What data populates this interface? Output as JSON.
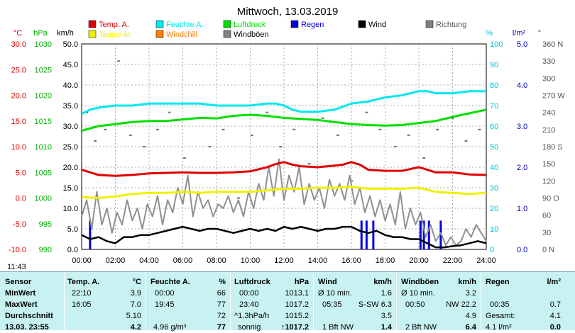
{
  "chart_data": {
    "type": "line",
    "title": "Mittwoch, 13.03.2019",
    "legend": [
      {
        "name": "Temp. A.",
        "color": "#e00000"
      },
      {
        "name": "Feuchte A.",
        "color": "#00e8f0"
      },
      {
        "name": "Luftdruck",
        "color": "#00e000"
      },
      {
        "name": "Regen",
        "color": "#0000e0"
      },
      {
        "name": "Wind",
        "color": "#000000"
      },
      {
        "name": "Richtung",
        "color": "#808080"
      },
      {
        "name": "Taupunkt",
        "color": "#f0f000"
      },
      {
        "name": "Windchill",
        "color": "#ff8000"
      },
      {
        "name": "Windböen",
        "color": "#808080"
      }
    ],
    "axes": {
      "temp": {
        "label": "°C",
        "ticks": [
          "30.0",
          "25.0",
          "20.0",
          "15.0",
          "10.0",
          "5.0",
          "0.0",
          "-5.0",
          "-10.0"
        ]
      },
      "pressure": {
        "label": "hPa",
        "ticks": [
          "1030",
          "1025",
          "1020",
          "1015",
          "1010",
          "1005",
          "1000",
          "995",
          "990"
        ]
      },
      "wind": {
        "label": "km/h",
        "ticks": [
          "50.0",
          "45.0",
          "40.0",
          "35.0",
          "30.0",
          "25.0",
          "20.0",
          "15.0",
          "10.0",
          "5.0",
          "0.0"
        ]
      },
      "humidity": {
        "label": "%",
        "ticks": [
          "100",
          "90",
          "80",
          "70",
          "60",
          "50",
          "40",
          "30",
          "20",
          "10",
          "0"
        ]
      },
      "rain": {
        "label": "l/m²",
        "ticks": [
          "5.0",
          "4.0",
          "3.0",
          "2.0",
          "1.0",
          "0.0"
        ]
      },
      "direction": {
        "label": "°",
        "ticks": [
          "360 N",
          "330",
          "300",
          "270 W",
          "240",
          "210",
          "180 S",
          "150",
          "120",
          "90 O",
          "60",
          "30",
          "0 N"
        ]
      },
      "x_ticks": [
        "00:00",
        "02:00",
        "04:00",
        "06:00",
        "08:00",
        "10:00",
        "12:00",
        "14:00",
        "16:00",
        "18:00",
        "20:00",
        "22:00",
        "24:00"
      ]
    },
    "ranges": {
      "x": [
        0,
        24
      ],
      "wind": [
        0,
        50
      ],
      "humidity": [
        0,
        100
      ],
      "rain": [
        0,
        5
      ],
      "temp": [
        -10,
        30
      ],
      "pressure": [
        990,
        1030
      ],
      "direction": [
        0,
        360
      ]
    },
    "series": {
      "temp": {
        "x": [
          0,
          1,
          2,
          3,
          4,
          5,
          6,
          7,
          8,
          9,
          10,
          11,
          11.5,
          12,
          12.5,
          13,
          14,
          15,
          15.5,
          16,
          16.5,
          17,
          18,
          19,
          20,
          20.5,
          21,
          22,
          23,
          24
        ],
        "y": [
          5.5,
          4.5,
          4.3,
          4.5,
          4.8,
          4.9,
          5.0,
          4.9,
          4.9,
          5.0,
          5.2,
          6.0,
          6.6,
          7.0,
          6.5,
          6.2,
          6.0,
          6.3,
          6.5,
          7.0,
          6.5,
          5.5,
          5.3,
          5.3,
          6.0,
          5.5,
          5.0,
          5.0,
          4.6,
          4.5
        ]
      },
      "dewpoint": {
        "x": [
          0,
          1,
          2,
          3,
          4,
          5,
          6,
          7,
          8,
          9,
          10,
          11,
          12,
          13,
          14,
          15,
          16,
          17,
          18,
          19,
          20,
          21,
          22,
          23,
          24
        ],
        "y": [
          0.2,
          0.0,
          0.3,
          0.8,
          1.0,
          1.0,
          1.2,
          1.0,
          1.2,
          1.2,
          1.2,
          1.5,
          1.8,
          1.8,
          2.0,
          2.0,
          2.2,
          1.8,
          1.8,
          1.8,
          2.0,
          1.2,
          1.0,
          0.8,
          1.0
        ]
      },
      "humidity": {
        "x": [
          0,
          0.5,
          1,
          2,
          3,
          4,
          5,
          6,
          7,
          8,
          9,
          10,
          11,
          11.5,
          12,
          12.5,
          13,
          14,
          15,
          16,
          17,
          17.5,
          18,
          19,
          20,
          20.5,
          21,
          22,
          23,
          24
        ],
        "y": [
          66,
          68,
          69,
          70,
          70,
          71,
          71,
          71,
          71,
          70,
          70,
          70,
          71,
          71,
          70,
          68,
          67,
          67,
          68,
          71,
          72,
          73,
          74,
          75,
          77,
          77,
          76,
          76,
          77,
          77
        ]
      },
      "pressure": {
        "x": [
          0,
          1,
          2,
          3,
          4,
          5,
          6,
          7,
          8,
          9,
          10,
          11,
          12,
          13,
          14,
          15,
          16,
          17,
          18,
          19,
          20,
          21,
          22,
          23,
          24
        ],
        "y": [
          1013.1,
          1014.0,
          1014.4,
          1014.8,
          1015.0,
          1015.0,
          1015.3,
          1015.6,
          1015.5,
          1016.0,
          1016.2,
          1016.0,
          1015.6,
          1015.4,
          1015.2,
          1014.8,
          1014.4,
          1014.2,
          1014.1,
          1014.2,
          1014.6,
          1015.0,
          1015.8,
          1016.5,
          1017.2
        ]
      },
      "wind": {
        "x": [
          0,
          0.5,
          1,
          1.5,
          2,
          2.5,
          3,
          3.5,
          4,
          4.5,
          5,
          5.5,
          6,
          6.5,
          7,
          7.5,
          8,
          8.5,
          9,
          9.5,
          10,
          10.5,
          11,
          11.5,
          12,
          12.5,
          13,
          13.5,
          14,
          14.5,
          15,
          15.5,
          16,
          16.5,
          17,
          17.5,
          18,
          18.5,
          19,
          19.5,
          20,
          20.5,
          21,
          21.5,
          22,
          22.5,
          23,
          23.5,
          24
        ],
        "y": [
          3.5,
          2.5,
          3.0,
          2.0,
          1.5,
          3.0,
          3.0,
          3.5,
          3.5,
          4.0,
          4.5,
          5.0,
          5.5,
          5.0,
          4.5,
          5.0,
          5.0,
          4.5,
          4.0,
          4.5,
          5.0,
          4.5,
          5.0,
          4.5,
          5.5,
          5.0,
          5.5,
          5.0,
          4.5,
          5.0,
          5.0,
          5.5,
          5.5,
          4.5,
          4.0,
          4.5,
          3.5,
          3.0,
          3.0,
          2.5,
          2.5,
          1.5,
          0.5,
          0.5,
          0.8,
          1.0,
          1.5,
          2.0,
          1.5
        ]
      },
      "gusts": {
        "x": [
          0,
          0.3,
          0.6,
          0.9,
          1.2,
          1.5,
          1.8,
          2.1,
          2.4,
          2.7,
          3,
          3.3,
          3.6,
          3.9,
          4.2,
          4.5,
          4.8,
          5.1,
          5.4,
          5.7,
          6,
          6.3,
          6.6,
          6.9,
          7.2,
          7.5,
          7.8,
          8.1,
          8.4,
          8.7,
          9,
          9.3,
          9.6,
          9.9,
          10.2,
          10.5,
          10.8,
          11.1,
          11.4,
          11.7,
          12,
          12.3,
          12.6,
          12.9,
          13.2,
          13.5,
          13.8,
          14.1,
          14.4,
          14.7,
          15,
          15.3,
          15.6,
          15.9,
          16.2,
          16.5,
          16.8,
          17.1,
          17.4,
          17.7,
          18,
          18.3,
          18.6,
          18.9,
          19.2,
          19.5,
          19.8,
          20.1,
          20.4,
          20.7,
          21,
          21.3,
          21.6,
          21.9,
          22.2,
          22.5,
          22.8,
          23.1,
          23.4,
          23.7,
          24
        ],
        "y": [
          8,
          12,
          5,
          14,
          6,
          10,
          4,
          9,
          6,
          12,
          7,
          10,
          5,
          11,
          8,
          13,
          6,
          12,
          9,
          15,
          11,
          18,
          8,
          14,
          10,
          12,
          8,
          11,
          10,
          13,
          9,
          12,
          8,
          14,
          10,
          16,
          12,
          20,
          13,
          22,
          12,
          18,
          14,
          20,
          11,
          16,
          12,
          15,
          10,
          17,
          13,
          16,
          12,
          18,
          11,
          15,
          9,
          13,
          8,
          12,
          7,
          11,
          6,
          14,
          5,
          10,
          6,
          9,
          3,
          6,
          2,
          4,
          1,
          3,
          1,
          2,
          5,
          3,
          6,
          4,
          2
        ]
      },
      "rain": {
        "x": [
          0.5,
          16.6,
          16.9,
          17.3,
          20.1,
          20.3,
          20.6,
          21.3
        ],
        "y": [
          0.7,
          0.7,
          0.7,
          0.7,
          0.7,
          0.7,
          0.7,
          0.7
        ]
      },
      "direction": {
        "x": [
          0.3,
          0.8,
          1.4,
          2.2,
          2.9,
          3.7,
          4.5,
          5.2,
          6.1,
          6.9,
          7.6,
          8.4,
          9.3,
          10.1,
          11.0,
          11.8,
          12.6,
          13.5,
          14.3,
          15.2,
          16.0,
          16.9,
          17.7,
          18.6,
          19.4,
          20.3,
          21.1,
          22.0,
          22.8,
          23.6
        ],
        "y": [
          240,
          190,
          210,
          330,
          200,
          180,
          210,
          240,
          160,
          230,
          180,
          210,
          90,
          200,
          240,
          180,
          210,
          150,
          230,
          200,
          120,
          240,
          210,
          180,
          200,
          160,
          210,
          230,
          190,
          210
        ]
      }
    }
  },
  "clock": "11:43",
  "table": {
    "sensor": {
      "header": "Sensor",
      "min": "MinWert",
      "max": "MaxWert",
      "avg": "Durchschnitt",
      "now": "13.03. 23:55"
    },
    "temp": {
      "header": "Temp. A.",
      "unit": "°C",
      "min_time": "22:10",
      "min_val": "3.9",
      "max_time": "16:05",
      "max_val": "7.0",
      "avg_val": "5.10",
      "now_val": "4.2"
    },
    "humidity": {
      "header": "Feuchte A.",
      "unit": "%",
      "min_time": "00:00",
      "min_val": "66",
      "max_time": "19:45",
      "max_val": "77",
      "avg_val": "72",
      "now_extra": "4.96 g/m³",
      "now_val": "77"
    },
    "pressure": {
      "header": "Luftdruck",
      "unit": "hPa",
      "min_time": "00:00",
      "min_val": "1013.1",
      "max_time": "23:40",
      "max_val": "1017.2",
      "avg_label": "^1.3hPa/h",
      "avg_val": "1015.2",
      "now_label": "sonnig",
      "now_val": "↑1017.2"
    },
    "wind": {
      "header": "Wind",
      "unit": "km/h",
      "min_label": "Ø 10 min.",
      "min_val": "1.6",
      "max_time": "05:35",
      "max_dir": "S-SW 6.3",
      "avg_val": "3.5",
      "now_label": "1 Bft NW",
      "now_val": "1.4"
    },
    "gusts": {
      "header": "Windböen",
      "unit": "km/h",
      "min_label": "Ø 10 min.",
      "min_val": "3.2",
      "max_time": "00:50",
      "max_dir": "NW 22.2",
      "avg_val": "4.9",
      "now_label": "2 Bft NW",
      "now_val": "6.4"
    },
    "rain": {
      "header": "Regen",
      "unit": "l/m²",
      "max_time": "00:35",
      "max_val": "0.7",
      "total_label": "Gesamt:",
      "total_val": "4.1",
      "now_label": "4.1 l/m²",
      "now_val": "0.0"
    }
  }
}
